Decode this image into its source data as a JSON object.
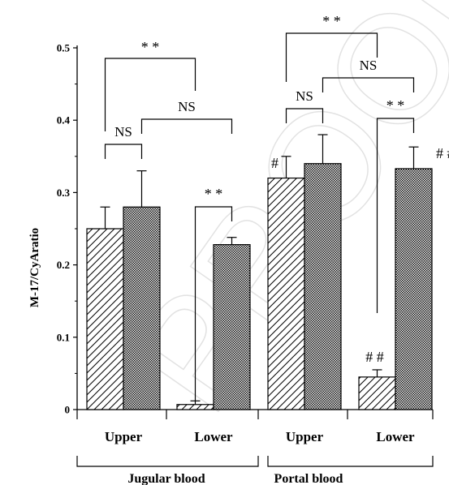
{
  "chart_data": {
    "type": "bar",
    "ylabel": "M-17/CyAratio",
    "ylim": [
      0,
      0.5
    ],
    "yticks": [
      0,
      0.1,
      0.2,
      0.3,
      0.4,
      0.5
    ],
    "ytick_labels": [
      "0",
      "0.1",
      "0.2",
      "0.3",
      "0.4",
      "0.5"
    ],
    "categories": [
      "Upper",
      "Lower",
      "Upper",
      "Lower"
    ],
    "sections": [
      {
        "label": "Jugular blood",
        "categories": [
          0,
          1
        ]
      },
      {
        "label": "Portal blood",
        "categories": [
          2,
          3
        ]
      }
    ],
    "bars": [
      {
        "category": 0,
        "pattern": "hatched",
        "value": 0.25,
        "error": 0.03
      },
      {
        "category": 0,
        "pattern": "checkered",
        "value": 0.28,
        "error": 0.05
      },
      {
        "category": 1,
        "pattern": "hatched",
        "value": 0.007,
        "error": 0.005
      },
      {
        "category": 1,
        "pattern": "checkered",
        "value": 0.228,
        "error": 0.01
      },
      {
        "category": 2,
        "pattern": "hatched",
        "value": 0.32,
        "error": 0.03
      },
      {
        "category": 2,
        "pattern": "checkered",
        "value": 0.34,
        "error": 0.04
      },
      {
        "category": 3,
        "pattern": "hatched",
        "value": 0.045,
        "error": 0.01
      },
      {
        "category": 3,
        "pattern": "checkered",
        "value": 0.333,
        "error": 0.03
      }
    ],
    "bar_markers": [
      {
        "bar": 4,
        "text": "#"
      },
      {
        "bar": 6,
        "text": "# #"
      },
      {
        "bar": 7,
        "text": "# #"
      }
    ],
    "comparisons": [
      {
        "from": 0,
        "to": 1,
        "text": "NS"
      },
      {
        "from": 2,
        "to": 3,
        "text": "* *"
      },
      {
        "from": 0,
        "to": 2,
        "text": "* *"
      },
      {
        "from": 1,
        "to": 3,
        "text": "NS"
      },
      {
        "from": 4,
        "to": 5,
        "text": "NS"
      },
      {
        "from": 6,
        "to": 7,
        "text": "* *"
      },
      {
        "from": 4,
        "to": 6,
        "text": "* *"
      },
      {
        "from": 5,
        "to": 7,
        "text": "NS"
      }
    ],
    "watermark": "PROOF"
  }
}
